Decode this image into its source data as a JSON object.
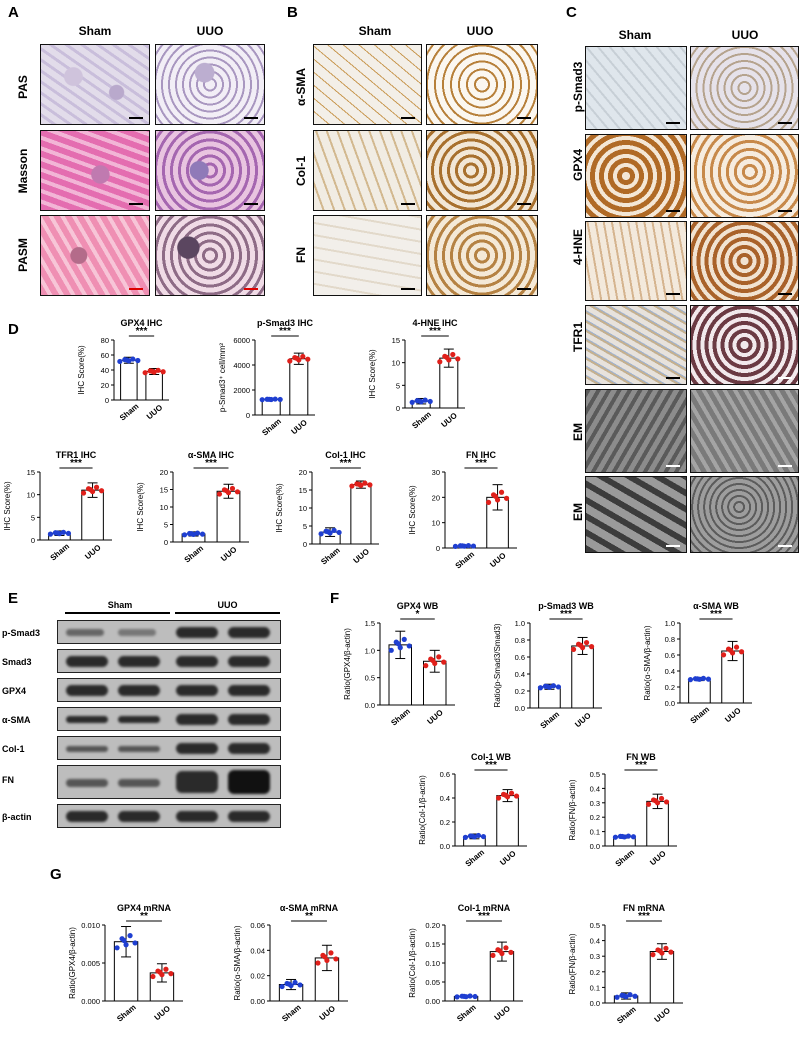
{
  "panels": {
    "A": {
      "letter": "A",
      "cols": [
        "Sham",
        "UUO"
      ],
      "rows": [
        "PAS",
        "Masson",
        "PASM"
      ]
    },
    "B": {
      "letter": "B",
      "cols": [
        "Sham",
        "UUO"
      ],
      "rows": [
        "α-SMA",
        "Col-1",
        "FN"
      ]
    },
    "C": {
      "letter": "C",
      "cols": [
        "Sham",
        "UUO"
      ],
      "rows": [
        "p-Smad3",
        "GPX4",
        "4-HNE",
        "TFR1",
        "EM",
        "EM"
      ]
    },
    "D": {
      "letter": "D"
    },
    "E": {
      "letter": "E",
      "groups": [
        "Sham",
        "UUO"
      ],
      "rows": [
        "p-Smad3",
        "Smad3",
        "GPX4",
        "α-SMA",
        "Col-1",
        "FN",
        "β-actin"
      ]
    },
    "F": {
      "letter": "F"
    },
    "G": {
      "letter": "G"
    }
  },
  "colors": {
    "sham": "#1f3fd1",
    "uuo": "#e0201b",
    "bar": "#ffffff",
    "ink": "#000000"
  },
  "chart_data": [
    {
      "id": "d1",
      "type": "bar",
      "title": "GPX4 IHC",
      "ylabel": "IHC Score(%)",
      "categories": [
        "Sham",
        "UUO"
      ],
      "values": [
        53,
        38
      ],
      "err": [
        4,
        4
      ],
      "ylim": [
        0,
        80
      ],
      "yticks": [
        "0",
        "20",
        "40",
        "60",
        "80"
      ],
      "sig": "***"
    },
    {
      "id": "d2",
      "type": "bar",
      "title": "p-Smad3 IHC",
      "ylabel": "p-Smad3⁺ cell/mm²",
      "categories": [
        "Sham",
        "UUO"
      ],
      "values": [
        1250,
        4500
      ],
      "err": [
        60,
        450
      ],
      "ylim": [
        0,
        6000
      ],
      "yticks": [
        "0",
        "2000",
        "4000",
        "6000"
      ],
      "sig": "***"
    },
    {
      "id": "d3",
      "type": "bar",
      "title": "4-HNE IHC",
      "ylabel": "IHC Score(%)",
      "categories": [
        "Sham",
        "UUO"
      ],
      "values": [
        1.5,
        11
      ],
      "err": [
        0.6,
        2
      ],
      "ylim": [
        0,
        15
      ],
      "yticks": [
        "0",
        "5",
        "10",
        "15"
      ],
      "sig": "***"
    },
    {
      "id": "d4",
      "type": "bar",
      "title": "TFR1 IHC",
      "ylabel": "IHC Score(%)",
      "categories": [
        "Sham",
        "UUO"
      ],
      "values": [
        1.5,
        11
      ],
      "err": [
        0.5,
        1.6
      ],
      "ylim": [
        0,
        15
      ],
      "yticks": [
        "0",
        "5",
        "10",
        "15"
      ],
      "sig": "***"
    },
    {
      "id": "d5",
      "type": "bar",
      "title": "α-SMA IHC",
      "ylabel": "IHC Score(%)",
      "categories": [
        "Sham",
        "UUO"
      ],
      "values": [
        2.3,
        14.5
      ],
      "err": [
        0.6,
        2
      ],
      "ylim": [
        0,
        20
      ],
      "yticks": [
        "0",
        "5",
        "10",
        "15",
        "20"
      ],
      "sig": "***"
    },
    {
      "id": "d6",
      "type": "bar",
      "title": "Col-1 IHC",
      "ylabel": "IHC Score(%)",
      "categories": [
        "Sham",
        "UUO"
      ],
      "values": [
        3.3,
        16.5
      ],
      "err": [
        1.2,
        1
      ],
      "ylim": [
        0,
        20
      ],
      "yticks": [
        "0",
        "5",
        "10",
        "15",
        "20"
      ],
      "sig": "***"
    },
    {
      "id": "d7",
      "type": "bar",
      "title": "FN IHC",
      "ylabel": "IHC Score(%)",
      "categories": [
        "Sham",
        "UUO"
      ],
      "values": [
        0.8,
        20
      ],
      "err": [
        0.4,
        5
      ],
      "ylim": [
        0,
        30
      ],
      "yticks": [
        "0",
        "10",
        "20",
        "30"
      ],
      "sig": "***"
    },
    {
      "id": "f1",
      "type": "bar",
      "title": "GPX4 WB",
      "ylabel": "Ratio(GPX4/β-actin)",
      "categories": [
        "Sham",
        "UUO"
      ],
      "values": [
        1.1,
        0.8
      ],
      "err": [
        0.25,
        0.2
      ],
      "ylim": [
        0,
        1.5
      ],
      "yticks": [
        "0.0",
        "0.5",
        "1.0",
        "1.5"
      ],
      "sig": "*"
    },
    {
      "id": "f2",
      "type": "bar",
      "title": "p-Smad3 WB",
      "ylabel": "Ratio(p-Smad3/Smad3)",
      "categories": [
        "Sham",
        "UUO"
      ],
      "values": [
        0.25,
        0.73
      ],
      "err": [
        0.03,
        0.1
      ],
      "ylim": [
        0,
        1.0
      ],
      "yticks": [
        "0.0",
        "0.2",
        "0.4",
        "0.6",
        "0.8",
        "1.0"
      ],
      "sig": "***"
    },
    {
      "id": "f3",
      "type": "bar",
      "title": "α-SMA WB",
      "ylabel": "Ratio(α-SMA/β-actin)",
      "categories": [
        "Sham",
        "UUO"
      ],
      "values": [
        0.3,
        0.65
      ],
      "err": [
        0.02,
        0.12
      ],
      "ylim": [
        0,
        1.0
      ],
      "yticks": [
        "0.0",
        "0.2",
        "0.4",
        "0.6",
        "0.8",
        "1.0"
      ],
      "sig": "***"
    },
    {
      "id": "f4",
      "type": "bar",
      "title": "Col-1 WB",
      "ylabel": "Ratio(Col-1/β-actin)",
      "categories": [
        "Sham",
        "UUO"
      ],
      "values": [
        0.08,
        0.42
      ],
      "err": [
        0.02,
        0.05
      ],
      "ylim": [
        0,
        0.6
      ],
      "yticks": [
        "0.0",
        "0.2",
        "0.4",
        "0.6"
      ],
      "sig": "***"
    },
    {
      "id": "f5",
      "type": "bar",
      "title": "FN WB",
      "ylabel": "Ratio(FN/β-actin)",
      "categories": [
        "Sham",
        "UUO"
      ],
      "values": [
        0.065,
        0.31
      ],
      "err": [
        0.01,
        0.05
      ],
      "ylim": [
        0,
        0.5
      ],
      "yticks": [
        "0.0",
        "0.1",
        "0.2",
        "0.3",
        "0.4",
        "0.5"
      ],
      "sig": "***"
    },
    {
      "id": "g1",
      "type": "bar",
      "title": "GPX4 mRNA",
      "ylabel": "Ratio(GPX4/β-actin)",
      "categories": [
        "Sham",
        "UUO"
      ],
      "values": [
        0.0078,
        0.0037
      ],
      "err": [
        0.002,
        0.0012
      ],
      "ylim": [
        0,
        0.01
      ],
      "yticks": [
        "0.000",
        "0.005",
        "0.010"
      ],
      "sig": "**"
    },
    {
      "id": "g2",
      "type": "bar",
      "title": "α-SMA mRNA",
      "ylabel": "Ratio(α-SMA/β-actin)",
      "categories": [
        "Sham",
        "UUO"
      ],
      "values": [
        0.013,
        0.034
      ],
      "err": [
        0.004,
        0.01
      ],
      "ylim": [
        0,
        0.06
      ],
      "yticks": [
        "0.00",
        "0.02",
        "0.04",
        "0.06"
      ],
      "sig": "**"
    },
    {
      "id": "g3",
      "type": "bar",
      "title": "Col-1 mRNA",
      "ylabel": "Ratio(Col-1/β-actin)",
      "categories": [
        "Sham",
        "UUO"
      ],
      "values": [
        0.012,
        0.13
      ],
      "err": [
        0.003,
        0.025
      ],
      "ylim": [
        0,
        0.2
      ],
      "yticks": [
        "0.00",
        "0.05",
        "0.10",
        "0.15",
        "0.20"
      ],
      "sig": "***"
    },
    {
      "id": "g4",
      "type": "bar",
      "title": "FN mRNA",
      "ylabel": "Ratio(FN/β-actin)",
      "categories": [
        "Sham",
        "UUO"
      ],
      "values": [
        0.045,
        0.33
      ],
      "err": [
        0.02,
        0.05
      ],
      "ylim": [
        0,
        0.5
      ],
      "yticks": [
        "0.0",
        "0.1",
        "0.2",
        "0.3",
        "0.4",
        "0.5"
      ],
      "sig": "***"
    }
  ]
}
